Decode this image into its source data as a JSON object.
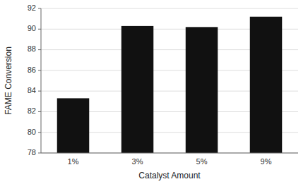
{
  "chart_data": {
    "type": "bar",
    "categories": [
      "1%",
      "3%",
      "5%",
      "9%"
    ],
    "values": [
      83.3,
      90.3,
      90.2,
      91.2
    ],
    "color": "#111111",
    "xlabel": "Catalyst Amount",
    "ylabel": "FAME Conversion",
    "ylim": [
      78,
      92
    ],
    "yticks": [
      78,
      80,
      82,
      84,
      86,
      88,
      90,
      92
    ],
    "grid": true
  }
}
